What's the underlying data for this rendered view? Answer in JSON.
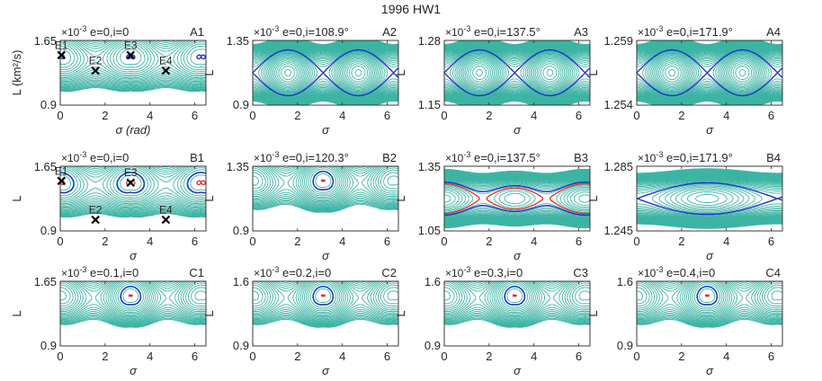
{
  "figure": {
    "title": "1996 HW1",
    "colors": {
      "teal": "#3cb4a4",
      "blue": "#1f2fc8",
      "red": "#e8281e",
      "axis": "#262626",
      "marker": "#000000"
    }
  },
  "chart_data": [
    {
      "id": "A1",
      "type": "line",
      "row": 0,
      "col": 0,
      "case": "e=0,i=0",
      "exponent": "-3",
      "curve": "e0",
      "ylim": [
        0.9,
        1.65
      ],
      "yticks": [
        "0.9",
        "1.65"
      ],
      "xlim": [
        0,
        6.5
      ],
      "xticks": [
        "0",
        "2",
        "4",
        "6"
      ],
      "xlabel": "σ (rad)",
      "ylabel": "L (km²/s)",
      "sep_color": "blue",
      "equilibria": [
        {
          "name": "E1",
          "x": 0.05,
          "y": 1.48
        },
        {
          "name": "E2",
          "x": 1.57,
          "y": 1.3
        },
        {
          "name": "E3",
          "x": 3.14,
          "y": 1.48
        },
        {
          "name": "E4",
          "x": 4.71,
          "y": 1.3
        }
      ]
    },
    {
      "id": "A2",
      "type": "line",
      "row": 0,
      "col": 1,
      "case": "e=0,i=108.9°",
      "exponent": "-3",
      "curve": "cosdouble",
      "ylim": [
        0.9,
        1.35
      ],
      "yticks": [
        "0.9",
        "1.35"
      ],
      "xlim": [
        0,
        6.5
      ],
      "xticks": [
        "0",
        "2",
        "4",
        "6"
      ],
      "xlabel": "σ",
      "ylabel": "L",
      "sep_color": "blue",
      "equilibria": []
    },
    {
      "id": "A3",
      "type": "line",
      "row": 0,
      "col": 2,
      "case": "e=0,i=137.5°",
      "exponent": "-3",
      "curve": "cosdouble",
      "ylim": [
        1.15,
        1.28
      ],
      "yticks": [
        "1.15",
        "1.28"
      ],
      "xlim": [
        0,
        6.5
      ],
      "xticks": [
        "0",
        "2",
        "4",
        "6"
      ],
      "xlabel": "σ",
      "ylabel": "L",
      "sep_color": "blue",
      "equilibria": []
    },
    {
      "id": "A4",
      "type": "line",
      "row": 0,
      "col": 3,
      "case": "e=0,i=171.9°",
      "exponent": "-3",
      "curve": "cosdouble",
      "ylim": [
        1.254,
        1.259
      ],
      "yticks": [
        "1.254",
        "1.259"
      ],
      "xlim": [
        0,
        6.5
      ],
      "xticks": [
        "0",
        "2",
        "4",
        "6"
      ],
      "xlabel": "σ",
      "ylabel": "L",
      "sep_color": "blue",
      "equilibria": []
    },
    {
      "id": "B1",
      "type": "line",
      "row": 1,
      "col": 0,
      "case": "e=0,i=0",
      "exponent": "-3",
      "curve": "e0",
      "ylim": [
        0.9,
        1.65
      ],
      "yticks": [
        "0.9",
        "1.65"
      ],
      "xlim": [
        0,
        6.5
      ],
      "xticks": [
        "0",
        "2",
        "4",
        "6"
      ],
      "xlabel": "σ",
      "ylabel": "L",
      "sep_color": "red",
      "equilibria": [
        {
          "name": "E1",
          "x": 0.05,
          "y": 1.48
        },
        {
          "name": "E2",
          "x": 1.57,
          "y": 1.03
        },
        {
          "name": "E3",
          "x": 3.14,
          "y": 1.46
        },
        {
          "name": "E4",
          "x": 4.71,
          "y": 1.03
        }
      ]
    },
    {
      "id": "B2",
      "type": "line",
      "row": 1,
      "col": 1,
      "case": "e=0,i=120.3°",
      "exponent": "-3",
      "curve": "eN",
      "ylim": [
        0.9,
        1.35
      ],
      "yticks": [
        "0.9",
        "1.35"
      ],
      "xlim": [
        0,
        6.5
      ],
      "xticks": [
        "0",
        "2",
        "4",
        "6"
      ],
      "xlabel": "σ",
      "ylabel": "L",
      "sep_color": "red",
      "equilibria": []
    },
    {
      "id": "B3",
      "type": "line",
      "row": 1,
      "col": 2,
      "case": "e=0,i=137.5°",
      "exponent": "-3",
      "curve": "figure8",
      "ylim": [
        1.05,
        1.35
      ],
      "yticks": [
        "1.05",
        "1.35"
      ],
      "xlim": [
        0,
        6.5
      ],
      "xticks": [
        "0",
        "2",
        "4",
        "6"
      ],
      "xlabel": "σ",
      "ylabel": "L",
      "sep_color": "red",
      "equilibria": []
    },
    {
      "id": "B4",
      "type": "line",
      "row": 1,
      "col": 3,
      "case": "e=0,i=171.9°",
      "exponent": "-3",
      "curve": "single",
      "ylim": [
        1.245,
        1.285
      ],
      "yticks": [
        "1.245",
        "1.285"
      ],
      "xlim": [
        0,
        6.5
      ],
      "xticks": [
        "0",
        "2",
        "4",
        "6"
      ],
      "xlabel": "σ",
      "ylabel": "L",
      "sep_color": "blue",
      "equilibria": []
    },
    {
      "id": "C1",
      "type": "line",
      "row": 2,
      "col": 0,
      "case": "e=0.1,i=0",
      "exponent": "-3",
      "curve": "eN",
      "ylim": [
        0.9,
        1.65
      ],
      "yticks": [
        "0.9",
        "1.65"
      ],
      "xlim": [
        0,
        6.5
      ],
      "xticks": [
        "0",
        "2",
        "4",
        "6"
      ],
      "xlabel": "σ",
      "ylabel": "L",
      "sep_color": "red",
      "equilibria": []
    },
    {
      "id": "C2",
      "type": "line",
      "row": 2,
      "col": 1,
      "case": "e=0.2,i=0",
      "exponent": "-3",
      "curve": "eN",
      "ylim": [
        0.9,
        1.6
      ],
      "yticks": [
        "0.9",
        "1.6"
      ],
      "xlim": [
        0,
        6.5
      ],
      "xticks": [
        "0",
        "2",
        "4",
        "6"
      ],
      "xlabel": "σ",
      "ylabel": "L",
      "sep_color": "red",
      "equilibria": []
    },
    {
      "id": "C3",
      "type": "line",
      "row": 2,
      "col": 2,
      "case": "e=0.3,i=0",
      "exponent": "-3",
      "curve": "eN",
      "ylim": [
        0.9,
        1.6
      ],
      "yticks": [
        "0.9",
        "1.6"
      ],
      "xlim": [
        0,
        6.5
      ],
      "xticks": [
        "0",
        "2",
        "4",
        "6"
      ],
      "xlabel": "σ",
      "ylabel": "L",
      "sep_color": "red",
      "equilibria": []
    },
    {
      "id": "C4",
      "type": "line",
      "row": 2,
      "col": 3,
      "case": "e=0.4,i=0",
      "exponent": "-3",
      "curve": "eN",
      "ylim": [
        0.9,
        1.6
      ],
      "yticks": [
        "0.9",
        "1.6"
      ],
      "xlim": [
        0,
        6.5
      ],
      "xticks": [
        "0",
        "2",
        "4",
        "6"
      ],
      "xlabel": "σ",
      "ylabel": "L",
      "sep_color": "red",
      "equilibria": []
    }
  ]
}
